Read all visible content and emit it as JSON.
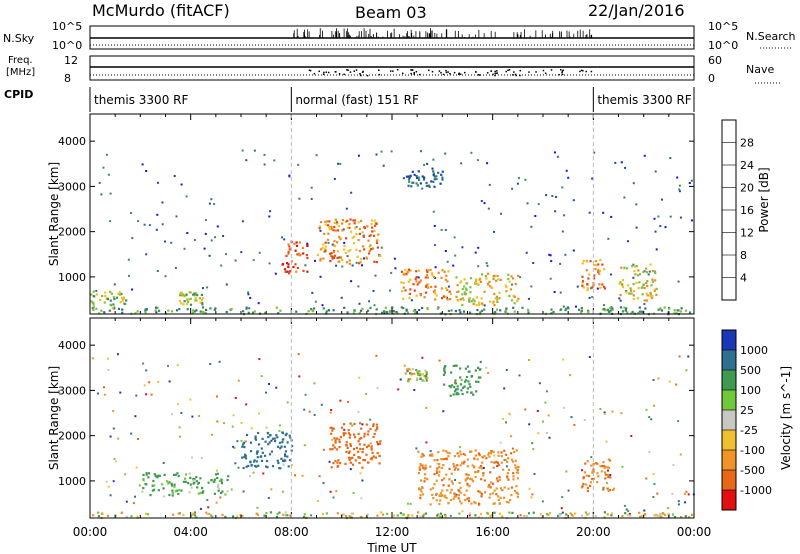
{
  "header": {
    "station": "McMurdo (fitACF)",
    "beam": "Beam 03",
    "date": "22/Jan/2016"
  },
  "status_panels": {
    "nsky_label": "N.Sky",
    "nsky_ticks": [
      "10^5",
      "10^0"
    ],
    "nsearch_label": "N.Search",
    "nsearch_ticks": [
      "10^5",
      "10^0"
    ],
    "freq_label_line1": "Freq.",
    "freq_label_line2": "[MHz]",
    "freq_ticks": [
      "12",
      "8"
    ],
    "nave_label": "Nave",
    "nave_ticks": [
      "60",
      "0"
    ],
    "cpid_label": "CPID",
    "cpid_segments": [
      {
        "label": "themis 3300 RF",
        "start_hour": 0.0,
        "end_hour": 8.0
      },
      {
        "label": "normal (fast) 151 RF",
        "start_hour": 8.0,
        "end_hour": 20.0
      },
      {
        "label": "themis 3300 RF",
        "start_hour": 20.0,
        "end_hour": 24.0
      }
    ]
  },
  "axes": {
    "x_label": "Time UT",
    "x_ticks": [
      "00:00",
      "04:00",
      "08:00",
      "12:00",
      "16:00",
      "20:00",
      "00:00"
    ],
    "x_tick_hours": [
      0,
      4,
      8,
      12,
      16,
      20,
      24
    ],
    "y_label": "Slant Range [km]",
    "y_ticks": [
      "1000",
      "2000",
      "3000",
      "4000"
    ],
    "y_tick_values": [
      1000,
      2000,
      3000,
      4000
    ],
    "y_range": [
      180,
      4600
    ]
  },
  "power_colorbar": {
    "label": "Power [dB]",
    "ticks": [
      "4",
      "8",
      "12",
      "16",
      "20",
      "24",
      "28"
    ],
    "colors": [
      "#1010f0",
      "#1848a8",
      "#2e6e88",
      "#3c8a5c",
      "#7cc03c",
      "#f0c020",
      "#f08820",
      "#e84818",
      "#e01010"
    ]
  },
  "velocity_colorbar": {
    "label": "Velocity [m s^-1]",
    "ticks": [
      "1000",
      "500",
      "100",
      "25",
      "-25",
      "-100",
      "-500",
      "-1000"
    ],
    "colors": [
      "#1838b8",
      "#2e7090",
      "#3e9a50",
      "#70c838",
      "#c8c8c0",
      "#f0c030",
      "#f09428",
      "#e86818",
      "#e01010"
    ]
  },
  "chart_data": [
    {
      "type": "heatmap",
      "title": "Power",
      "xlabel": "Time UT",
      "ylabel": "Slant Range [km]",
      "x_unit": "hours UT",
      "xlim": [
        0,
        24
      ],
      "ylim": [
        180,
        4600
      ],
      "colorbar_label": "Power [dB]",
      "features": [
        {
          "t": [
            0.0,
            24.0
          ],
          "r": [
            200,
            350
          ],
          "value_db": 10,
          "note_hint": "near-range ground band"
        },
        {
          "t": [
            9.0,
            11.5
          ],
          "r": [
            1300,
            2300
          ],
          "value_db": 24
        },
        {
          "t": [
            7.6,
            8.6
          ],
          "r": [
            1100,
            1800
          ],
          "value_db": 26
        },
        {
          "t": [
            12.3,
            14.3
          ],
          "r": [
            500,
            1200
          ],
          "value_db": 22
        },
        {
          "t": [
            14.5,
            17.0
          ],
          "r": [
            400,
            1100
          ],
          "value_db": 18
        },
        {
          "t": [
            19.5,
            20.5
          ],
          "r": [
            700,
            1400
          ],
          "value_db": 24
        },
        {
          "t": [
            21.0,
            22.5
          ],
          "r": [
            500,
            1300
          ],
          "value_db": 20
        },
        {
          "t": [
            12.5,
            14.0
          ],
          "r": [
            3000,
            3400
          ],
          "value_db": 6
        },
        {
          "t": [
            0.0,
            1.5
          ],
          "r": [
            300,
            700
          ],
          "value_db": 14
        },
        {
          "t": [
            3.5,
            4.5
          ],
          "r": [
            400,
            700
          ],
          "value_db": 16
        }
      ]
    },
    {
      "type": "heatmap",
      "title": "Velocity",
      "xlabel": "Time UT",
      "ylabel": "Slant Range [km]",
      "x_unit": "hours UT",
      "xlim": [
        0,
        24
      ],
      "ylim": [
        180,
        4600
      ],
      "colorbar_label": "Velocity [m s^-1]",
      "features": [
        {
          "t": [
            0.0,
            24.0
          ],
          "r": [
            200,
            330
          ],
          "velocity": 0
        },
        {
          "t": [
            6.0,
            8.0
          ],
          "r": [
            1300,
            2100
          ],
          "velocity": 700
        },
        {
          "t": [
            9.5,
            11.5
          ],
          "r": [
            1300,
            2300
          ],
          "velocity": -700
        },
        {
          "t": [
            13.0,
            17.0
          ],
          "r": [
            500,
            1700
          ],
          "velocity": -400
        },
        {
          "t": [
            19.5,
            20.8
          ],
          "r": [
            800,
            1500
          ],
          "velocity": -500
        },
        {
          "t": [
            2.0,
            5.5
          ],
          "r": [
            700,
            1200
          ],
          "velocity": 200
        },
        {
          "t": [
            14.0,
            15.5
          ],
          "r": [
            2900,
            3600
          ],
          "velocity": 300
        },
        {
          "t": [
            12.5,
            13.5
          ],
          "r": [
            3200,
            3500
          ],
          "velocity": 0
        }
      ]
    }
  ]
}
